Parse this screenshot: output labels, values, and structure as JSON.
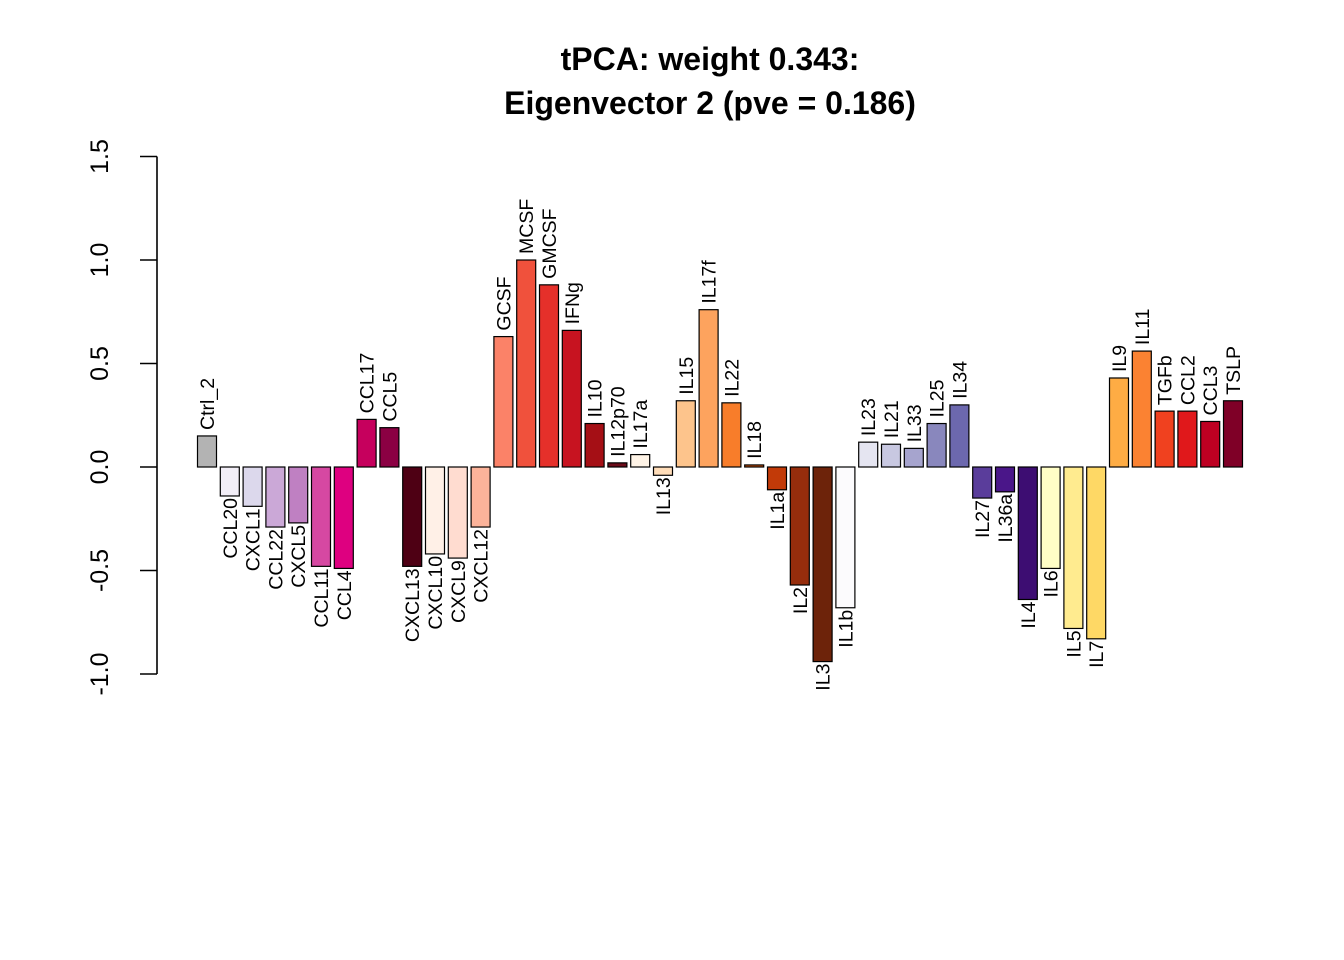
{
  "chart_data": {
    "type": "bar",
    "title": [
      "tPCA: weight 0.343:",
      "Eigenvector 2 (pve = 0.186)"
    ],
    "xlabel": "",
    "ylabel": "",
    "ylim": [
      -1.0,
      1.5
    ],
    "yticks": [
      "-1.0",
      "-0.5",
      "0.0",
      "0.5",
      "1.0",
      "1.5"
    ],
    "grid": false,
    "categories": [
      "Ctrl_2",
      "CCL20",
      "CXCL1",
      "CCL22",
      "CXCL5",
      "CCL11",
      "CCL4",
      "CCL17",
      "CCL5",
      "CXCL13",
      "CXCL10",
      "CXCL9",
      "CXCL12",
      "GCSF",
      "MCSF",
      "GMCSF",
      "IFNg",
      "IL10",
      "IL12p70",
      "IL17a",
      "IL13",
      "IL15",
      "IL17f",
      "IL22",
      "IL18",
      "IL1a",
      "IL2",
      "IL3",
      "IL1b",
      "IL23",
      "IL21",
      "IL33",
      "IL25",
      "IL34",
      "IL27",
      "IL36a",
      "IL4",
      "IL6",
      "IL5",
      "IL7",
      "IL9",
      "IL11",
      "TGFb",
      "CCL2",
      "CCL3",
      "TSLP"
    ],
    "values": [
      0.15,
      -0.14,
      -0.19,
      -0.29,
      -0.27,
      -0.48,
      -0.49,
      0.23,
      0.19,
      -0.48,
      -0.42,
      -0.44,
      -0.29,
      0.63,
      1.0,
      0.88,
      0.66,
      0.21,
      0.02,
      0.06,
      -0.04,
      0.32,
      0.76,
      0.31,
      0.01,
      -0.11,
      -0.57,
      -0.94,
      -0.68,
      0.12,
      0.11,
      0.09,
      0.21,
      0.3,
      -0.15,
      -0.12,
      -0.64,
      -0.49,
      -0.78,
      -0.83,
      0.43,
      0.56,
      0.27,
      0.27,
      0.22,
      0.32
    ],
    "colors": [
      "#B3B3B3",
      "#F2EEF7",
      "#DCD8EC",
      "#CBA8D7",
      "#BF80C2",
      "#D648A2",
      "#DE0080",
      "#C6005D",
      "#8B0043",
      "#4E0014",
      "#FFF0E7",
      "#FFDCD0",
      "#FCB39A",
      "#FB8268",
      "#F0513C",
      "#E5302A",
      "#C71320",
      "#A50F15",
      "#6C0C1A",
      "#FFF4E7",
      "#FFDDB9",
      "#FDC48C",
      "#FDA35E",
      "#F87D2A",
      "#DE5408",
      "#C23A08",
      "#962D0C",
      "#6D230A",
      "#FCFBFD",
      "#E5E5F1",
      "#C8C8E1",
      "#A6A4CE",
      "#8987BD",
      "#6C68AE",
      "#5A3D9B",
      "#4A1689",
      "#3D0D72",
      "#FFFEC6",
      "#FFEB8F",
      "#FED865",
      "#FEAC44",
      "#FB8232",
      "#F0411F",
      "#E0181B",
      "#BE0022",
      "#7F0027"
    ]
  }
}
